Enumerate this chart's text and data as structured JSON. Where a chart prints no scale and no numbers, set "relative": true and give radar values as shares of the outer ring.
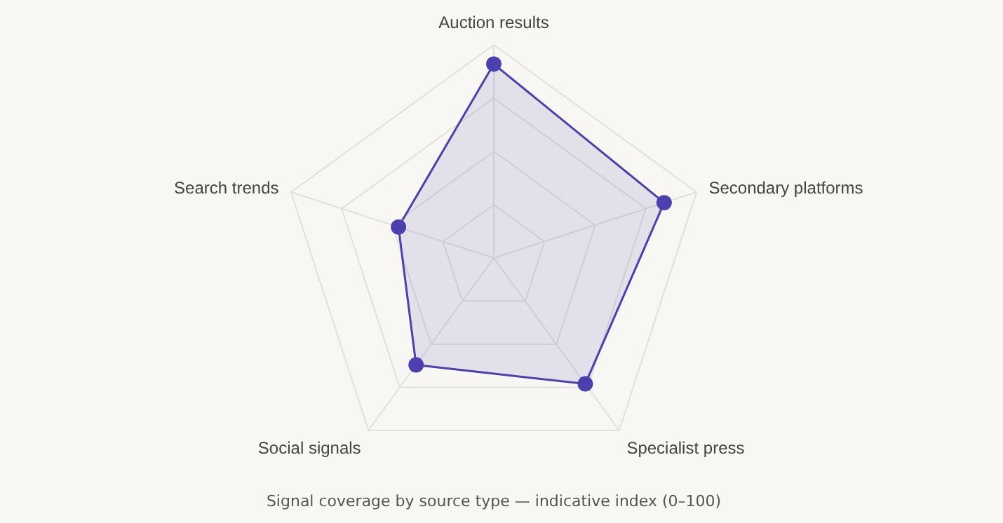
{
  "chart_data": {
    "type": "radar",
    "relative": true,
    "categories": [
      "Auction results",
      "Secondary platforms",
      "Specialist press",
      "Social signals",
      "Search trends"
    ],
    "series": [
      {
        "color": "#4c3fae",
        "values": [
          0.91,
          0.84,
          0.73,
          0.62,
          0.47
        ]
      }
    ],
    "grid": true,
    "marker": "circle",
    "annotations": [
      "Signal coverage by source type — indicative index (0–100)"
    ]
  }
}
